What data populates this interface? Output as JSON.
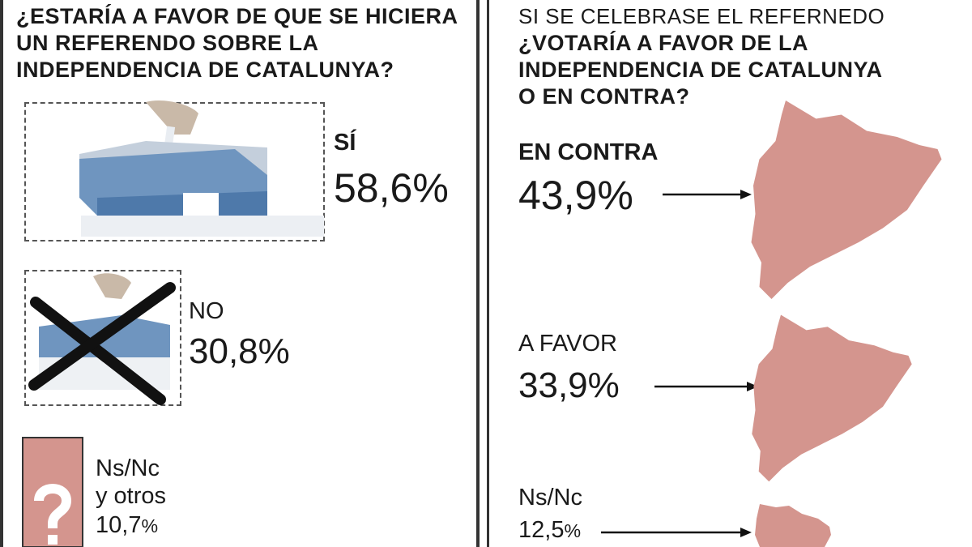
{
  "colors": {
    "accent": "#d4958e",
    "ballot_box_blue": "#6f95bf",
    "ink": "#1a1a1a"
  },
  "left": {
    "question_lines": [
      "¿ESTARÍA A FAVOR DE QUE SE HICIERA",
      "UN REFERENDO SOBRE LA",
      "INDEPENDENCIA DE CATALUNYA?"
    ],
    "answers": [
      {
        "label": "SÍ",
        "value_text": "58,6",
        "unit": "%",
        "icon": "ballot-box-icon"
      },
      {
        "label": "NO",
        "value_text": "30,8",
        "unit": "%",
        "icon": "crossed-ballot-box-icon"
      },
      {
        "label_line1": "Ns/Nc",
        "label_line2": "y otros",
        "value_text": "10,7",
        "unit": "%",
        "icon": "question-mark-icon"
      }
    ]
  },
  "right": {
    "subtitle": "SI SE CELEBRASE EL REFERNEDO",
    "question_lines": [
      "¿VOTARÍA A FAVOR DE LA",
      "INDEPENDENCIA DE CATALUNYA",
      "O EN CONTRA?"
    ],
    "answers": [
      {
        "label": "EN CONTRA",
        "value_text": "43,9",
        "unit": "%",
        "icon": "catalonia-map-icon"
      },
      {
        "label": "A FAVOR",
        "value_text": "33,9",
        "unit": "%",
        "icon": "catalonia-map-icon"
      },
      {
        "label": "Ns/Nc",
        "value_text": "12,5",
        "unit": "%",
        "icon": "catalonia-map-icon"
      }
    ]
  },
  "chart_data": [
    {
      "type": "bar",
      "title": "¿ESTARÍA A FAVOR DE QUE SE HICIERA UN REFERENDO SOBRE LA INDEPENDENCIA DE CATALUNYA?",
      "categories": [
        "SÍ",
        "NO",
        "Ns/Nc y otros"
      ],
      "values": [
        58.6,
        30.8,
        10.7
      ],
      "unit": "%"
    },
    {
      "type": "bar",
      "title": "¿VOTARÍA A FAVOR DE LA INDEPENDENCIA DE CATALUNYA O EN CONTRA?",
      "subtitle": "SI SE CELEBRASE EL REFERNEDO",
      "categories": [
        "EN CONTRA",
        "A FAVOR",
        "Ns/Nc"
      ],
      "values": [
        43.9,
        33.9,
        12.5
      ],
      "unit": "%"
    }
  ]
}
